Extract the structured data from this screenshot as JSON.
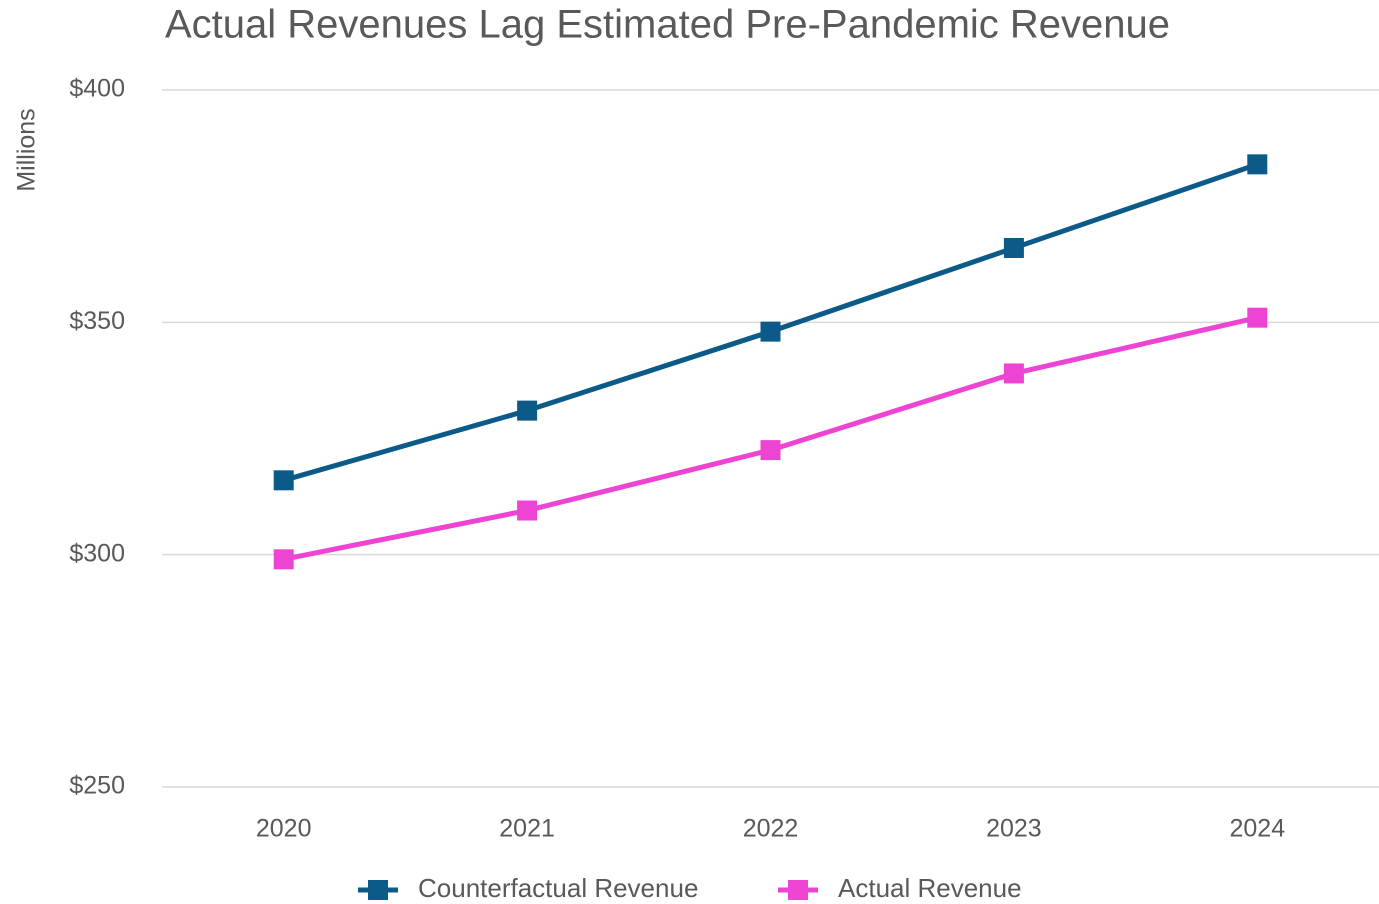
{
  "chart_data": {
    "type": "line",
    "title": "Actual Revenues Lag Estimated Pre-Pandemic Revenue",
    "y_label": "Millions",
    "categories": [
      "2020",
      "2021",
      "2022",
      "2023",
      "2024"
    ],
    "series": [
      {
        "name": "Counterfactual Revenue",
        "color": "#0b5a87",
        "values": [
          316,
          331,
          348,
          366,
          384
        ]
      },
      {
        "name": "Actual Revenue",
        "color": "#ee44d4",
        "values": [
          299,
          309.5,
          322.5,
          339,
          351
        ]
      }
    ],
    "ylim": [
      250,
      400
    ],
    "yticks": [
      {
        "value": 250,
        "label": "$250"
      },
      {
        "value": 300,
        "label": "$300"
      },
      {
        "value": 350,
        "label": "$350"
      },
      {
        "value": 400,
        "label": "$400"
      }
    ],
    "grid": true,
    "legend": "bottom"
  }
}
